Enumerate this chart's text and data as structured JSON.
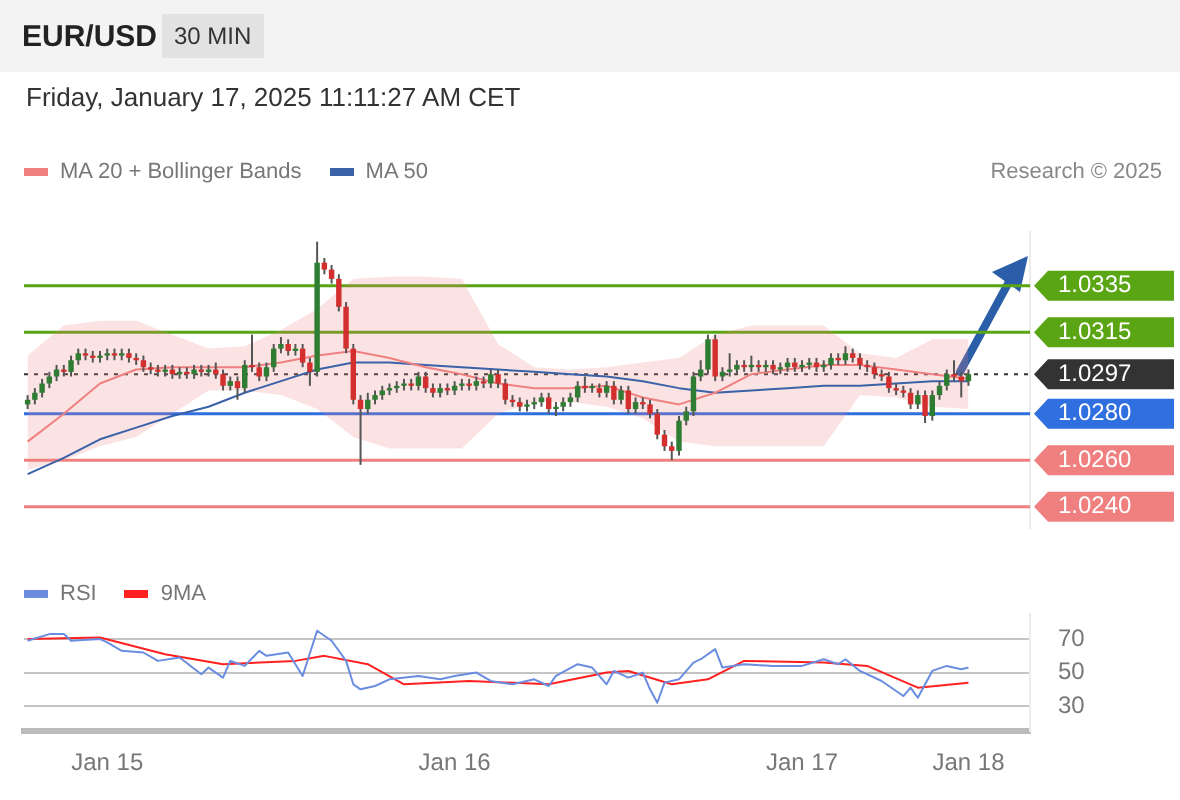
{
  "chart_data": [
    {
      "type": "candlestick",
      "title": "EUR/USD",
      "subtitle": "Friday, January 17, 2025 11:11:27 AM CET",
      "annotations": [
        "30 MIN",
        "Research © 2025"
      ],
      "categories": [
        null,
        null,
        null,
        null,
        null,
        null,
        null,
        null,
        null,
        null,
        null,
        null,
        null,
        null,
        null,
        null,
        null,
        null,
        null,
        null,
        null,
        null,
        null,
        null,
        null,
        null,
        null,
        null,
        null,
        null,
        null,
        null,
        null,
        null,
        null,
        null,
        null,
        null,
        null,
        null,
        null,
        null,
        null,
        null,
        null,
        null,
        null,
        null,
        null,
        null,
        null,
        null,
        null,
        null,
        null,
        null,
        null,
        null,
        null,
        null,
        null,
        null,
        null,
        null,
        null,
        null,
        null,
        null,
        null,
        null,
        null,
        null,
        null,
        null,
        null,
        null,
        null,
        null,
        null,
        null,
        null,
        null,
        null,
        null,
        null,
        null,
        null,
        null,
        null,
        null,
        null,
        null,
        null,
        null,
        null,
        null,
        null,
        null,
        null,
        null,
        null,
        null,
        null,
        null,
        null,
        null,
        null,
        null,
        null,
        null,
        null,
        null,
        null,
        null,
        null,
        null,
        null,
        null,
        null,
        null,
        null,
        null,
        null,
        null,
        null,
        null,
        null,
        null,
        null,
        null,
        null,
        null,
        null,
        null,
        null,
        null,
        null,
        null,
        null
      ],
      "ylim": [
        1.0231,
        1.0358
      ],
      "yticks": [
        {
          "value": 1.024,
          "label": "1.0240"
        },
        {
          "value": 1.026,
          "label": "1.0260"
        },
        {
          "value": 1.028,
          "label": "1.0280"
        },
        1.0297,
        1.0315,
        1.0335
      ],
      "tick_labels": "y",
      "legend": "top left",
      "ohlc": [
        [
          1.0284,
          1.0288,
          1.0282,
          1.0286
        ],
        [
          1.0286,
          1.0291,
          1.0284,
          1.0289
        ],
        [
          1.0289,
          1.0295,
          1.0287,
          1.0293
        ],
        [
          1.0293,
          1.0298,
          1.0291,
          1.0296
        ],
        [
          1.0296,
          1.0301,
          1.0294,
          1.0299
        ],
        [
          1.0299,
          1.0301,
          1.0296,
          1.0298
        ],
        [
          1.0298,
          1.0305,
          1.0296,
          1.0303
        ],
        [
          1.0303,
          1.0308,
          1.0301,
          1.0306
        ],
        [
          1.0306,
          1.0308,
          1.0303,
          1.0305
        ],
        [
          1.0305,
          1.0307,
          1.0302,
          1.0304
        ],
        [
          1.0304,
          1.0307,
          1.0302,
          1.0305
        ],
        [
          1.0305,
          1.0308,
          1.0303,
          1.0306
        ],
        [
          1.0306,
          1.0308,
          1.0303,
          1.0305
        ],
        [
          1.0305,
          1.0308,
          1.0303,
          1.0306
        ],
        [
          1.0306,
          1.0308,
          1.0302,
          1.0304
        ],
        [
          1.0304,
          1.0306,
          1.0301,
          1.0303
        ],
        [
          1.0303,
          1.0305,
          1.0298,
          1.03
        ],
        [
          1.03,
          1.0302,
          1.0297,
          1.0299
        ],
        [
          1.0299,
          1.0301,
          1.0296,
          1.0298
        ],
        [
          1.0298,
          1.0301,
          1.0296,
          1.0299
        ],
        [
          1.0299,
          1.0301,
          1.0295,
          1.0297
        ],
        [
          1.0297,
          1.03,
          1.0295,
          1.0298
        ],
        [
          1.0298,
          1.03,
          1.0295,
          1.0297
        ],
        [
          1.0297,
          1.0301,
          1.0295,
          1.0299
        ],
        [
          1.0299,
          1.0301,
          1.0296,
          1.0298
        ],
        [
          1.0298,
          1.0301,
          1.0296,
          1.0299
        ],
        [
          1.0299,
          1.0302,
          1.0295,
          1.0297
        ],
        [
          1.0297,
          1.0299,
          1.029,
          1.0292
        ],
        [
          1.0292,
          1.0296,
          1.029,
          1.0294
        ],
        [
          1.0294,
          1.0296,
          1.0286,
          1.0291
        ],
        [
          1.0291,
          1.0303,
          1.0289,
          1.0301
        ],
        [
          1.0301,
          1.0314,
          1.0298,
          1.03
        ],
        [
          1.03,
          1.0302,
          1.0294,
          1.0296
        ],
        [
          1.0296,
          1.0302,
          1.0294,
          1.03
        ],
        [
          1.03,
          1.031,
          1.0298,
          1.0308
        ],
        [
          1.0308,
          1.0313,
          1.0306,
          1.031
        ],
        [
          1.031,
          1.0312,
          1.0305,
          1.0307
        ],
        [
          1.0307,
          1.031,
          1.0305,
          1.0308
        ],
        [
          1.0308,
          1.031,
          1.03,
          1.0302
        ],
        [
          1.0302,
          1.0304,
          1.0292,
          1.0298
        ],
        [
          1.0298,
          1.0354,
          1.0296,
          1.0345
        ],
        [
          1.0345,
          1.0347,
          1.034,
          1.0342
        ],
        [
          1.0342,
          1.0344,
          1.0336,
          1.0338
        ],
        [
          1.0338,
          1.034,
          1.0324,
          1.0326
        ],
        [
          1.0326,
          1.0328,
          1.0306,
          1.0308
        ],
        [
          1.0308,
          1.031,
          1.0284,
          1.0286
        ],
        [
          1.0286,
          1.0288,
          1.0258,
          1.0282
        ],
        [
          1.0282,
          1.0289,
          1.028,
          1.0286
        ],
        [
          1.0286,
          1.029,
          1.0284,
          1.0288
        ],
        [
          1.0288,
          1.0292,
          1.0286,
          1.029
        ],
        [
          1.029,
          1.0293,
          1.0288,
          1.0291
        ],
        [
          1.0291,
          1.0294,
          1.0289,
          1.0292
        ],
        [
          1.0292,
          1.0295,
          1.029,
          1.0293
        ],
        [
          1.0293,
          1.0295,
          1.029,
          1.0292
        ],
        [
          1.0292,
          1.0298,
          1.029,
          1.0296
        ],
        [
          1.0296,
          1.0298,
          1.0289,
          1.0291
        ],
        [
          1.0291,
          1.0293,
          1.0287,
          1.0289
        ],
        [
          1.0289,
          1.0293,
          1.0287,
          1.0291
        ],
        [
          1.0291,
          1.0293,
          1.0288,
          1.029
        ],
        [
          1.029,
          1.0294,
          1.0288,
          1.0292
        ],
        [
          1.0292,
          1.0295,
          1.029,
          1.0293
        ],
        [
          1.0293,
          1.0295,
          1.029,
          1.0292
        ],
        [
          1.0292,
          1.0296,
          1.029,
          1.0294
        ],
        [
          1.0294,
          1.0296,
          1.0291,
          1.0293
        ],
        [
          1.0293,
          1.0299,
          1.0291,
          1.0297
        ],
        [
          1.0297,
          1.0299,
          1.0291,
          1.0293
        ],
        [
          1.0293,
          1.0295,
          1.0284,
          1.0286
        ],
        [
          1.0286,
          1.0288,
          1.0283,
          1.0285
        ],
        [
          1.0285,
          1.0287,
          1.0281,
          1.0283
        ],
        [
          1.0283,
          1.0286,
          1.0281,
          1.0284
        ],
        [
          1.0284,
          1.0287,
          1.0282,
          1.0285
        ],
        [
          1.0285,
          1.0289,
          1.0283,
          1.0287
        ],
        [
          1.0287,
          1.0289,
          1.028,
          1.0282
        ],
        [
          1.0282,
          1.0285,
          1.0279,
          1.0283
        ],
        [
          1.0283,
          1.0287,
          1.0281,
          1.0285
        ],
        [
          1.0285,
          1.0289,
          1.0283,
          1.0287
        ],
        [
          1.0287,
          1.0294,
          1.0285,
          1.0292
        ],
        [
          1.0292,
          1.0296,
          1.0289,
          1.0291
        ],
        [
          1.0291,
          1.0293,
          1.0289,
          1.0291
        ],
        [
          1.0291,
          1.0293,
          1.0287,
          1.0289
        ],
        [
          1.0289,
          1.0294,
          1.0287,
          1.0292
        ],
        [
          1.0292,
          1.0294,
          1.0284,
          1.0286
        ],
        [
          1.0286,
          1.0292,
          1.0284,
          1.029
        ],
        [
          1.029,
          1.0292,
          1.028,
          1.0282
        ],
        [
          1.0282,
          1.0287,
          1.028,
          1.0285
        ],
        [
          1.0285,
          1.0287,
          1.0282,
          1.0284
        ],
        [
          1.0284,
          1.0286,
          1.0278,
          1.028
        ],
        [
          1.028,
          1.0282,
          1.0269,
          1.0271
        ],
        [
          1.0271,
          1.0273,
          1.0264,
          1.0266
        ],
        [
          1.0266,
          1.0268,
          1.026,
          1.0264
        ],
        [
          1.0264,
          1.0279,
          1.0262,
          1.0277
        ],
        [
          1.0277,
          1.0283,
          1.0275,
          1.0281
        ],
        [
          1.0281,
          1.0298,
          1.0279,
          1.0296
        ],
        [
          1.0296,
          1.0303,
          1.0294,
          1.0299
        ],
        [
          1.0299,
          1.0314,
          1.0297,
          1.0312
        ],
        [
          1.0312,
          1.0314,
          1.0294,
          1.0296
        ],
        [
          1.0296,
          1.03,
          1.0294,
          1.0298
        ],
        [
          1.0298,
          1.0306,
          1.0296,
          1.0299
        ],
        [
          1.0299,
          1.0303,
          1.0297,
          1.0301
        ],
        [
          1.0301,
          1.0303,
          1.0298,
          1.03
        ],
        [
          1.03,
          1.0305,
          1.0298,
          1.0301
        ],
        [
          1.0301,
          1.0303,
          1.0298,
          1.03
        ],
        [
          1.03,
          1.0303,
          1.0298,
          1.0301
        ],
        [
          1.0301,
          1.0303,
          1.0297,
          1.0299
        ],
        [
          1.0299,
          1.0302,
          1.0297,
          1.03
        ],
        [
          1.03,
          1.0304,
          1.0298,
          1.0302
        ],
        [
          1.0302,
          1.0304,
          1.0298,
          1.03
        ],
        [
          1.03,
          1.0303,
          1.0298,
          1.0301
        ],
        [
          1.0301,
          1.0304,
          1.0299,
          1.0302
        ],
        [
          1.0302,
          1.0304,
          1.0298,
          1.03
        ],
        [
          1.03,
          1.0303,
          1.0298,
          1.0301
        ],
        [
          1.0301,
          1.0306,
          1.0299,
          1.0304
        ],
        [
          1.0304,
          1.0306,
          1.0301,
          1.0303
        ],
        [
          1.0303,
          1.0309,
          1.0301,
          1.0306
        ],
        [
          1.0306,
          1.0308,
          1.0302,
          1.0304
        ],
        [
          1.0304,
          1.0306,
          1.0299,
          1.0301
        ],
        [
          1.0301,
          1.0303,
          1.0298,
          1.03
        ],
        [
          1.03,
          1.0302,
          1.0295,
          1.0297
        ],
        [
          1.0297,
          1.0299,
          1.0294,
          1.0296
        ],
        [
          1.0296,
          1.0298,
          1.0289,
          1.0291
        ],
        [
          1.0291,
          1.0293,
          1.0288,
          1.029
        ],
        [
          1.029,
          1.0292,
          1.0287,
          1.0289
        ],
        [
          1.0289,
          1.0291,
          1.0282,
          1.0284
        ],
        [
          1.0284,
          1.029,
          1.0282,
          1.0288
        ],
        [
          1.0288,
          1.029,
          1.0276,
          1.0279
        ],
        [
          1.0279,
          1.029,
          1.0277,
          1.0288
        ],
        [
          1.0288,
          1.0294,
          1.0286,
          1.0292
        ],
        [
          1.0292,
          1.0299,
          1.029,
          1.0297
        ],
        [
          1.0297,
          1.0303,
          1.0294,
          1.0296
        ],
        [
          1.0296,
          1.0298,
          1.0287,
          1.0294
        ],
        [
          1.0294,
          1.0299,
          1.0292,
          1.0297
        ],
        null,
        null,
        null,
        null,
        null,
        null,
        null,
        null
      ],
      "series": [
        {
          "type": "line",
          "name": "MA 20 + Bollinger Bands",
          "color": "#f08080",
          "values": [
            1.0268,
            null,
            null,
            null,
            null,
            1.028,
            null,
            null,
            null,
            null,
            1.0293,
            null,
            null,
            null,
            null,
            1.0299,
            null,
            null,
            null,
            null,
            1.03,
            null,
            null,
            null,
            null,
            1.03,
            null,
            null,
            null,
            null,
            1.03,
            null,
            null,
            null,
            null,
            1.0302,
            null,
            null,
            null,
            null,
            1.0305,
            null,
            null,
            null,
            null,
            1.0307,
            null,
            null,
            null,
            null,
            1.0304,
            null,
            null,
            null,
            null,
            1.03,
            null,
            null,
            null,
            null,
            1.0297,
            null,
            null,
            null,
            null,
            1.0293,
            null,
            null,
            null,
            null,
            1.0291,
            null,
            null,
            null,
            null,
            1.0291,
            null,
            null,
            null,
            null,
            1.0292,
            null,
            null,
            null,
            null,
            1.0287,
            null,
            null,
            null,
            null,
            1.0284,
            null,
            null,
            null,
            null,
            1.0289,
            null,
            null,
            null,
            null,
            1.0297,
            null,
            null,
            null,
            null,
            1.0299,
            null,
            null,
            null,
            null,
            1.0301,
            null,
            null,
            null,
            null,
            1.0301,
            null,
            null,
            null,
            null,
            1.0299,
            null,
            null,
            null,
            null,
            1.0297,
            null,
            null,
            null,
            null,
            1.0295,
            null,
            null,
            null,
            null,
            null,
            null,
            null,
            null
          ],
          "upper": [
            1.0305,
            null,
            null,
            null,
            null,
            1.0318,
            null,
            null,
            null,
            null,
            1.032,
            null,
            null,
            null,
            null,
            1.032,
            null,
            null,
            null,
            null,
            1.0314,
            null,
            null,
            null,
            null,
            1.0308,
            null,
            null,
            null,
            null,
            1.0309,
            null,
            null,
            null,
            null,
            1.0316,
            null,
            null,
            null,
            null,
            1.0325,
            null,
            null,
            null,
            null,
            1.0338,
            null,
            null,
            null,
            null,
            1.0339,
            null,
            null,
            null,
            null,
            1.0339,
            null,
            null,
            null,
            null,
            1.0338,
            null,
            null,
            null,
            null,
            1.031,
            null,
            null,
            null,
            null,
            1.03,
            null,
            null,
            null,
            null,
            1.0299,
            null,
            null,
            null,
            null,
            1.03,
            null,
            null,
            null,
            null,
            1.0302,
            null,
            null,
            null,
            null,
            1.0304,
            null,
            null,
            null,
            null,
            1.0314,
            null,
            null,
            null,
            null,
            1.0318,
            null,
            null,
            null,
            null,
            1.0318,
            null,
            null,
            null,
            null,
            1.0318,
            null,
            null,
            null,
            null,
            1.0306,
            null,
            null,
            null,
            null,
            1.0304,
            null,
            null,
            null,
            null,
            1.0312,
            null,
            null,
            null,
            null,
            1.0312,
            null,
            null,
            null,
            null,
            null,
            null,
            null,
            null
          ],
          "lower": [
            1.0256,
            null,
            null,
            null,
            null,
            1.026,
            null,
            null,
            null,
            null,
            1.0266,
            null,
            null,
            null,
            null,
            1.027,
            null,
            null,
            null,
            null,
            1.028,
            null,
            null,
            null,
            null,
            1.029,
            null,
            null,
            null,
            null,
            1.029,
            null,
            null,
            null,
            null,
            1.0288,
            null,
            null,
            null,
            null,
            1.0282,
            null,
            null,
            null,
            null,
            1.027,
            null,
            null,
            null,
            null,
            1.0265,
            null,
            null,
            null,
            null,
            1.0265,
            null,
            null,
            null,
            null,
            1.0265,
            null,
            null,
            null,
            null,
            1.028,
            null,
            null,
            null,
            null,
            1.0285,
            null,
            null,
            null,
            null,
            1.0285,
            null,
            null,
            null,
            null,
            1.0283,
            null,
            null,
            null,
            null,
            1.0278,
            null,
            null,
            null,
            null,
            1.0268,
            null,
            null,
            null,
            null,
            1.0266,
            null,
            null,
            null,
            null,
            1.0266,
            null,
            null,
            null,
            null,
            1.0266,
            null,
            null,
            null,
            null,
            1.0266,
            null,
            null,
            null,
            null,
            1.0288,
            null,
            null,
            null,
            null,
            1.0287,
            null,
            null,
            null,
            null,
            1.0283,
            null,
            null,
            null,
            null,
            1.0282,
            null,
            null,
            null,
            null,
            null,
            null,
            null,
            null
          ]
        },
        {
          "type": "line",
          "name": "MA 50",
          "color": "#3a62a8",
          "values": [
            1.0254,
            null,
            null,
            null,
            null,
            1.0261,
            null,
            null,
            null,
            null,
            1.0269,
            null,
            null,
            null,
            null,
            1.0274,
            null,
            null,
            null,
            null,
            1.0279,
            null,
            null,
            null,
            null,
            1.0283,
            null,
            null,
            null,
            null,
            1.0289,
            null,
            null,
            null,
            null,
            1.0294,
            null,
            null,
            null,
            null,
            1.0299,
            null,
            null,
            null,
            null,
            1.0302,
            null,
            null,
            null,
            null,
            1.0302,
            null,
            null,
            null,
            null,
            1.0301,
            null,
            null,
            null,
            null,
            1.03,
            null,
            null,
            null,
            null,
            1.0299,
            null,
            null,
            null,
            null,
            1.0298,
            null,
            null,
            null,
            null,
            1.0297,
            null,
            null,
            null,
            null,
            1.0296,
            null,
            null,
            null,
            null,
            1.0294,
            null,
            null,
            null,
            null,
            1.0291,
            null,
            null,
            null,
            null,
            1.0289,
            null,
            null,
            null,
            null,
            1.029,
            null,
            null,
            null,
            null,
            1.0291,
            null,
            null,
            null,
            null,
            1.0292,
            null,
            null,
            null,
            null,
            1.0292,
            null,
            null,
            null,
            null,
            1.0293,
            null,
            null,
            null,
            null,
            1.0294,
            null,
            null,
            null,
            null,
            1.0294,
            null,
            null,
            null,
            null,
            null,
            null,
            null,
            null
          ]
        }
      ],
      "ref_lines": [
        {
          "axis": "y",
          "value": 1.0335,
          "color": "#5aa514"
        },
        {
          "axis": "y",
          "value": 1.0315,
          "color": "#5aa514"
        },
        {
          "axis": "y",
          "value": 1.0297,
          "color": "#333333",
          "line_style": "dotted"
        },
        {
          "axis": "y",
          "value": 1.028,
          "color": "#2f6fe0"
        },
        {
          "axis": "y",
          "value": 1.026,
          "color": "#f08080"
        },
        {
          "axis": "y",
          "value": 1.024,
          "color": "#f08080"
        }
      ]
    },
    {
      "type": "line",
      "categories": [
        null,
        null,
        null,
        null,
        null,
        null,
        null,
        null,
        null,
        null,
        null,
        "Jan 15",
        null,
        null,
        null,
        null,
        null,
        null,
        null,
        null,
        null,
        null,
        null,
        null,
        null,
        null,
        null,
        null,
        null,
        null,
        null,
        null,
        null,
        null,
        null,
        null,
        null,
        null,
        null,
        null,
        null,
        null,
        null,
        null,
        null,
        null,
        null,
        null,
        null,
        null,
        null,
        null,
        null,
        null,
        null,
        null,
        null,
        null,
        null,
        "Jan 16",
        null,
        null,
        null,
        null,
        null,
        null,
        null,
        null,
        null,
        null,
        null,
        null,
        null,
        null,
        null,
        null,
        null,
        null,
        null,
        null,
        null,
        null,
        null,
        null,
        null,
        null,
        null,
        null,
        null,
        null,
        null,
        null,
        null,
        null,
        null,
        null,
        null,
        null,
        null,
        null,
        null,
        null,
        null,
        null,
        null,
        null,
        null,
        "Jan 17",
        null,
        null,
        null,
        null,
        null,
        null,
        null,
        null,
        null,
        null,
        null,
        null,
        null,
        null,
        null,
        null,
        null,
        null,
        null,
        null,
        null,
        null,
        "Jan 18",
        null,
        null,
        null,
        null,
        null,
        null,
        null,
        null
      ],
      "ylim": [
        15,
        85
      ],
      "yticks": [
        30,
        50,
        70
      ],
      "grid": "y",
      "legend": "top left",
      "series": [
        {
          "name": "RSI",
          "color": "#6a8de0",
          "values": [
            69,
            null,
            null,
            73,
            null,
            73,
            69,
            null,
            null,
            null,
            70,
            68,
            null,
            63,
            null,
            null,
            62,
            null,
            57,
            null,
            null,
            59,
            null,
            null,
            49,
            53,
            null,
            47,
            57,
            null,
            54,
            null,
            63,
            60,
            null,
            null,
            62,
            55,
            48,
            null,
            75,
            null,
            69,
            null,
            57,
            43,
            40,
            null,
            42,
            null,
            46,
            null,
            null,
            null,
            48,
            null,
            null,
            46,
            null,
            48,
            null,
            null,
            50,
            null,
            45,
            null,
            null,
            43,
            null,
            null,
            46,
            null,
            42,
            48,
            null,
            null,
            55,
            null,
            53,
            null,
            43,
            51,
            null,
            47,
            null,
            50,
            40,
            32,
            44,
            null,
            46,
            null,
            56,
            58,
            null,
            64,
            53,
            null,
            null,
            55,
            null,
            null,
            null,
            54,
            null,
            null,
            null,
            54,
            null,
            null,
            58,
            null,
            55,
            58,
            null,
            51,
            null,
            null,
            45,
            null,
            39,
            36,
            41,
            35,
            null,
            51,
            null,
            54,
            null,
            52,
            53,
            null,
            null,
            null,
            null,
            null,
            null,
            null,
            null
          ]
        },
        {
          "name": "9MA",
          "color": "#ff2020",
          "values": [
            70,
            null,
            null,
            null,
            null,
            null,
            null,
            null,
            null,
            null,
            71,
            null,
            null,
            null,
            null,
            null,
            null,
            null,
            null,
            61,
            null,
            null,
            null,
            null,
            null,
            null,
            null,
            55,
            null,
            null,
            null,
            null,
            null,
            null,
            null,
            null,
            null,
            57,
            null,
            null,
            null,
            60,
            null,
            null,
            null,
            null,
            null,
            55,
            null,
            null,
            null,
            null,
            43,
            null,
            null,
            null,
            null,
            null,
            null,
            null,
            null,
            45,
            null,
            null,
            null,
            null,
            null,
            null,
            null,
            null,
            null,
            null,
            43,
            null,
            null,
            null,
            null,
            null,
            null,
            null,
            50,
            null,
            null,
            51,
            null,
            null,
            null,
            null,
            null,
            43,
            null,
            null,
            null,
            null,
            46,
            null,
            null,
            null,
            null,
            57,
            null,
            null,
            null,
            null,
            null,
            null,
            null,
            null,
            null,
            null,
            56,
            null,
            null,
            null,
            null,
            null,
            54,
            null,
            null,
            null,
            null,
            null,
            null,
            41,
            null,
            null,
            null,
            null,
            null,
            null,
            44,
            null,
            null,
            null,
            null,
            null,
            null,
            null,
            null
          ]
        }
      ]
    }
  ]
}
